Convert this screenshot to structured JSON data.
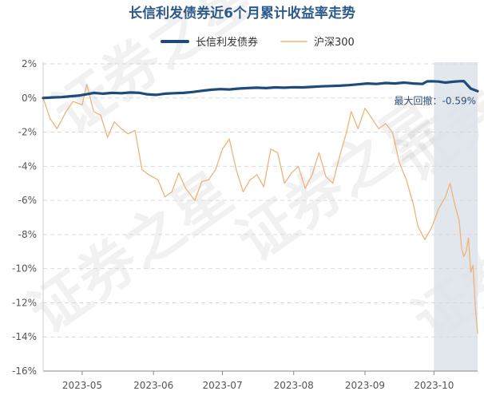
{
  "chart_data": {
    "type": "line",
    "title": "长信利发债券近6个月累计收益率走势",
    "legend_position": "top-center",
    "grid": true,
    "ylim": [
      -16,
      2
    ],
    "y_ticks": [
      2,
      0,
      -2,
      -4,
      -6,
      -8,
      -10,
      -12,
      -14,
      -16
    ],
    "y_tick_labels": [
      "2%",
      "0%",
      "-2%",
      "-4%",
      "-6%",
      "-8%",
      "-10%",
      "-12%",
      "-14%",
      "-16%"
    ],
    "x_ticks": [
      {
        "date": "2023-05-01",
        "label": "2023-05"
      },
      {
        "date": "2023-06-01",
        "label": "2023-06"
      },
      {
        "date": "2023-07-01",
        "label": "2023-07"
      },
      {
        "date": "2023-08-01",
        "label": "2023-08"
      },
      {
        "date": "2023-09-01",
        "label": "2023-09"
      },
      {
        "date": "2023-10-01",
        "label": "2023-10"
      }
    ],
    "x_range": [
      "2023-04-14",
      "2023-10-20"
    ],
    "shaded_region": {
      "start": "2023-10-01",
      "end": "2023-10-20",
      "color": "#dde3ea"
    },
    "annotation": {
      "text": "最大回撤：-0.59%",
      "date": "2023-10-20",
      "value": 0.15
    },
    "series": [
      {
        "name": "长信利发债券",
        "color": "#1f4b7a",
        "width": 3.2,
        "points": [
          [
            "2023-04-14",
            0.0
          ],
          [
            "2023-04-18",
            0.03
          ],
          [
            "2023-04-22",
            0.05
          ],
          [
            "2023-04-26",
            0.1
          ],
          [
            "2023-04-30",
            0.15
          ],
          [
            "2023-05-03",
            0.22
          ],
          [
            "2023-05-06",
            0.3
          ],
          [
            "2023-05-10",
            0.25
          ],
          [
            "2023-05-14",
            0.3
          ],
          [
            "2023-05-18",
            0.28
          ],
          [
            "2023-05-22",
            0.32
          ],
          [
            "2023-05-26",
            0.3
          ],
          [
            "2023-05-29",
            0.22
          ],
          [
            "2023-06-02",
            0.18
          ],
          [
            "2023-06-06",
            0.25
          ],
          [
            "2023-06-10",
            0.28
          ],
          [
            "2023-06-14",
            0.3
          ],
          [
            "2023-06-18",
            0.35
          ],
          [
            "2023-06-22",
            0.42
          ],
          [
            "2023-06-26",
            0.48
          ],
          [
            "2023-06-30",
            0.52
          ],
          [
            "2023-07-04",
            0.5
          ],
          [
            "2023-07-08",
            0.55
          ],
          [
            "2023-07-12",
            0.58
          ],
          [
            "2023-07-16",
            0.6
          ],
          [
            "2023-07-20",
            0.58
          ],
          [
            "2023-07-24",
            0.62
          ],
          [
            "2023-07-28",
            0.6
          ],
          [
            "2023-08-01",
            0.63
          ],
          [
            "2023-08-05",
            0.62
          ],
          [
            "2023-08-09",
            0.65
          ],
          [
            "2023-08-13",
            0.68
          ],
          [
            "2023-08-17",
            0.7
          ],
          [
            "2023-08-21",
            0.72
          ],
          [
            "2023-08-25",
            0.75
          ],
          [
            "2023-08-29",
            0.8
          ],
          [
            "2023-09-02",
            0.85
          ],
          [
            "2023-09-06",
            0.82
          ],
          [
            "2023-09-10",
            0.88
          ],
          [
            "2023-09-14",
            0.85
          ],
          [
            "2023-09-18",
            0.9
          ],
          [
            "2023-09-22",
            0.85
          ],
          [
            "2023-09-26",
            0.82
          ],
          [
            "2023-09-28",
            0.97
          ],
          [
            "2023-09-30",
            0.98
          ],
          [
            "2023-10-03",
            0.96
          ],
          [
            "2023-10-06",
            0.9
          ],
          [
            "2023-10-09",
            0.95
          ],
          [
            "2023-10-12",
            0.98
          ],
          [
            "2023-10-14",
            0.99
          ],
          [
            "2023-10-17",
            0.55
          ],
          [
            "2023-10-20",
            0.4
          ]
        ]
      },
      {
        "name": "沪深300",
        "color": "#f0b27a",
        "width": 1.3,
        "points": [
          [
            "2023-04-14",
            0.0
          ],
          [
            "2023-04-17",
            -1.2
          ],
          [
            "2023-04-20",
            -1.8
          ],
          [
            "2023-04-24",
            -0.8
          ],
          [
            "2023-04-27",
            -0.2
          ],
          [
            "2023-05-01",
            -0.4
          ],
          [
            "2023-05-03",
            0.8
          ],
          [
            "2023-05-06",
            -0.8
          ],
          [
            "2023-05-09",
            -1.0
          ],
          [
            "2023-05-12",
            -2.3
          ],
          [
            "2023-05-15",
            -1.4
          ],
          [
            "2023-05-18",
            -1.8
          ],
          [
            "2023-05-21",
            -2.1
          ],
          [
            "2023-05-24",
            -1.9
          ],
          [
            "2023-05-27",
            -4.2
          ],
          [
            "2023-05-30",
            -4.5
          ],
          [
            "2023-06-03",
            -4.8
          ],
          [
            "2023-06-06",
            -5.8
          ],
          [
            "2023-06-09",
            -5.5
          ],
          [
            "2023-06-12",
            -4.4
          ],
          [
            "2023-06-15",
            -5.3
          ],
          [
            "2023-06-19",
            -6.0
          ],
          [
            "2023-06-22",
            -4.9
          ],
          [
            "2023-06-25",
            -4.8
          ],
          [
            "2023-06-28",
            -4.2
          ],
          [
            "2023-07-01",
            -3.0
          ],
          [
            "2023-07-04",
            -2.4
          ],
          [
            "2023-07-07",
            -4.2
          ],
          [
            "2023-07-10",
            -5.5
          ],
          [
            "2023-07-13",
            -4.8
          ],
          [
            "2023-07-16",
            -4.5
          ],
          [
            "2023-07-19",
            -5.2
          ],
          [
            "2023-07-22",
            -3.0
          ],
          [
            "2023-07-25",
            -3.2
          ],
          [
            "2023-07-28",
            -5.0
          ],
          [
            "2023-07-31",
            -4.4
          ],
          [
            "2023-08-03",
            -4.0
          ],
          [
            "2023-08-06",
            -5.3
          ],
          [
            "2023-08-09",
            -4.5
          ],
          [
            "2023-08-12",
            -3.2
          ],
          [
            "2023-08-15",
            -4.6
          ],
          [
            "2023-08-18",
            -5.0
          ],
          [
            "2023-08-21",
            -3.4
          ],
          [
            "2023-08-24",
            -2.0
          ],
          [
            "2023-08-26",
            -0.8
          ],
          [
            "2023-08-29",
            -1.8
          ],
          [
            "2023-09-01",
            -0.6
          ],
          [
            "2023-09-04",
            -1.2
          ],
          [
            "2023-09-07",
            -1.8
          ],
          [
            "2023-09-10",
            -1.5
          ],
          [
            "2023-09-13",
            -2.0
          ],
          [
            "2023-09-16",
            -3.8
          ],
          [
            "2023-09-19",
            -4.8
          ],
          [
            "2023-09-22",
            -6.2
          ],
          [
            "2023-09-24",
            -7.5
          ],
          [
            "2023-09-27",
            -8.3
          ],
          [
            "2023-09-30",
            -7.6
          ],
          [
            "2023-10-03",
            -6.5
          ],
          [
            "2023-10-06",
            -5.8
          ],
          [
            "2023-10-08",
            -5.0
          ],
          [
            "2023-10-10",
            -6.2
          ],
          [
            "2023-10-12",
            -7.2
          ],
          [
            "2023-10-13",
            -8.8
          ],
          [
            "2023-10-14",
            -9.3
          ],
          [
            "2023-10-15",
            -9.0
          ],
          [
            "2023-10-16",
            -8.2
          ],
          [
            "2023-10-17",
            -10.2
          ],
          [
            "2023-10-18",
            -9.8
          ],
          [
            "2023-10-19",
            -12.2
          ],
          [
            "2023-10-20",
            -13.8
          ]
        ]
      }
    ]
  },
  "watermark_text": "证券之星"
}
